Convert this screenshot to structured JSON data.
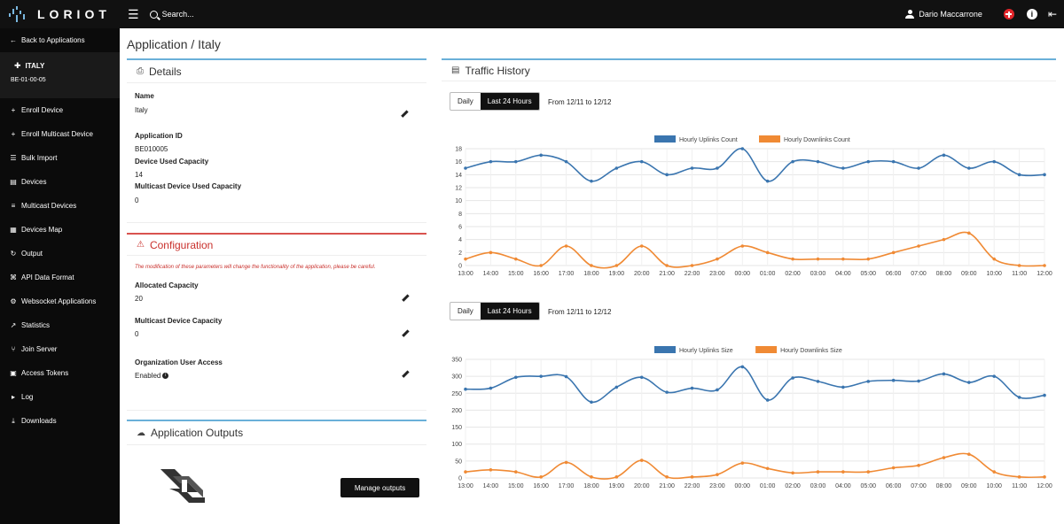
{
  "topbar": {
    "logo": "LORIOT",
    "search_placeholder": "Search...",
    "user_name": "Dario Maccarrone"
  },
  "sidebar": {
    "back": "Back to Applications",
    "app_name": "ITALY",
    "app_id": "BE-01-00-05",
    "items": [
      {
        "label": "Enroll Device",
        "icon": "plus-icon"
      },
      {
        "label": "Enroll Multicast Device",
        "icon": "plus-icon"
      },
      {
        "label": "Bulk Import",
        "icon": "list-icon"
      },
      {
        "label": "Devices",
        "icon": "devices-icon"
      },
      {
        "label": "Multicast Devices",
        "icon": "layers-icon"
      },
      {
        "label": "Devices Map",
        "icon": "map-icon"
      },
      {
        "label": "Output",
        "icon": "output-icon"
      },
      {
        "label": "API Data Format",
        "icon": "code-icon"
      },
      {
        "label": "Websocket Applications",
        "icon": "gear-icon"
      },
      {
        "label": "Statistics",
        "icon": "chart-icon"
      },
      {
        "label": "Join Server",
        "icon": "join-icon"
      },
      {
        "label": "Access Tokens",
        "icon": "lock-icon"
      },
      {
        "label": "Log",
        "icon": "log-icon"
      },
      {
        "label": "Downloads",
        "icon": "download-icon"
      }
    ]
  },
  "page": {
    "title": "Application / Italy"
  },
  "details": {
    "title": "Details",
    "name_label": "Name",
    "name_value": "Italy",
    "appid_label": "Application ID",
    "appid_value": "BE010005",
    "used_label": "Device Used Capacity",
    "used_value": "14",
    "mc_used_label": "Multicast Device Used Capacity",
    "mc_used_value": "0"
  },
  "configuration": {
    "title": "Configuration",
    "warning": "The modification of these parameters will change the functionality of the application, please be careful.",
    "alloc_label": "Allocated Capacity",
    "alloc_value": "20",
    "mc_cap_label": "Multicast Device Capacity",
    "mc_cap_value": "0",
    "org_label": "Organization User Access",
    "org_value": "Enabled"
  },
  "outputs": {
    "title": "Application Outputs",
    "manage_button": "Manage outputs"
  },
  "traffic": {
    "title": "Traffic History",
    "daily_label": "Daily",
    "last24_label": "Last 24 Hours",
    "range_text": "From 12/11 to 12/12"
  },
  "colors": {
    "uplink": "#3a75af",
    "downlink": "#f08a34"
  },
  "chart_data": [
    {
      "type": "line",
      "x": [
        "13:00",
        "14:00",
        "15:00",
        "16:00",
        "17:00",
        "18:00",
        "19:00",
        "20:00",
        "21:00",
        "22:00",
        "23:00",
        "00:00",
        "01:00",
        "02:00",
        "03:00",
        "04:00",
        "05:00",
        "06:00",
        "07:00",
        "08:00",
        "09:00",
        "10:00",
        "11:00",
        "12:00"
      ],
      "series": [
        {
          "name": "Hourly Uplinks Count",
          "values": [
            15,
            16,
            16,
            17,
            16,
            13,
            15,
            16,
            14,
            15,
            15,
            18,
            13,
            16,
            16,
            15,
            16,
            16,
            15,
            17,
            15,
            16,
            14,
            14
          ]
        },
        {
          "name": "Hourly Downlinks Count",
          "values": [
            1,
            2,
            1,
            0,
            3,
            0,
            0,
            3,
            0,
            0,
            1,
            3,
            2,
            1,
            1,
            1,
            1,
            2,
            3,
            4,
            5,
            1,
            0,
            0
          ]
        }
      ],
      "yticks": [
        0,
        2,
        4,
        6,
        8,
        10,
        12,
        14,
        16,
        18
      ],
      "ylim": [
        0,
        18
      ],
      "legend": "top"
    },
    {
      "type": "line",
      "x": [
        "13:00",
        "14:00",
        "15:00",
        "16:00",
        "17:00",
        "18:00",
        "19:00",
        "20:00",
        "21:00",
        "22:00",
        "23:00",
        "00:00",
        "01:00",
        "02:00",
        "03:00",
        "04:00",
        "05:00",
        "06:00",
        "07:00",
        "08:00",
        "09:00",
        "10:00",
        "11:00",
        "12:00"
      ],
      "series": [
        {
          "name": "Hourly Uplinks Size",
          "values": [
            262,
            265,
            297,
            300,
            299,
            224,
            268,
            297,
            253,
            265,
            260,
            328,
            230,
            295,
            285,
            268,
            285,
            288,
            286,
            307,
            282,
            300,
            238,
            244
          ]
        },
        {
          "name": "Hourly Downlinks Size",
          "values": [
            18,
            24,
            18,
            3,
            46,
            3,
            3,
            52,
            3,
            3,
            10,
            44,
            28,
            15,
            18,
            18,
            18,
            30,
            37,
            60,
            70,
            18,
            3,
            3
          ]
        }
      ],
      "yticks": [
        0,
        50,
        100,
        150,
        200,
        250,
        300,
        350
      ],
      "ylim": [
        0,
        350
      ],
      "legend": "top"
    }
  ]
}
